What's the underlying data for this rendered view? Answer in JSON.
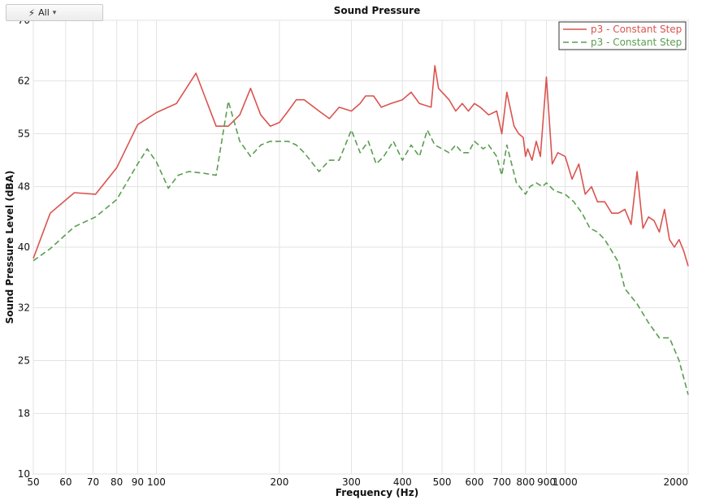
{
  "toolbar": {
    "filter_label": "All",
    "filter_icon": "lightning-bolt-icon",
    "dropdown_icon": "chevron-down-icon"
  },
  "chart_data": {
    "type": "line",
    "title": "Sound Pressure",
    "xlabel": "Frequency (Hz)",
    "ylabel": "Sound Pressure Level (dBA)",
    "x_scale": "log",
    "xlim": [
      50,
      2000
    ],
    "ylim": [
      10,
      70
    ],
    "x_ticks": [
      50,
      60,
      70,
      80,
      90,
      100,
      200,
      300,
      400,
      500,
      600,
      700,
      800,
      900,
      1000,
      2000
    ],
    "x_tick_labels": [
      "50",
      "60",
      "70",
      "80",
      "90",
      "100",
      "200",
      "300",
      "400",
      "500",
      "600",
      "700",
      "800",
      "900",
      "1000",
      "2000"
    ],
    "y_ticks": [
      10,
      18,
      25,
      32,
      40,
      48,
      55,
      62,
      70
    ],
    "y_tick_labels": [
      "10",
      "18",
      "25",
      "32",
      "40",
      "48",
      "55",
      "62",
      "70"
    ],
    "grid": true,
    "legend_position": "top-right",
    "series": [
      {
        "name": "p3  - Constant Step",
        "color": "#d9544f",
        "dash": "solid",
        "x": [
          50,
          55,
          63,
          71,
          80,
          90,
          100,
          112,
          125,
          140,
          150,
          160,
          170,
          180,
          190,
          200,
          210,
          220,
          230,
          250,
          265,
          280,
          300,
          315,
          325,
          340,
          355,
          375,
          400,
          420,
          440,
          470,
          480,
          490,
          500,
          520,
          540,
          560,
          580,
          600,
          620,
          650,
          680,
          700,
          720,
          750,
          770,
          790,
          800,
          810,
          830,
          850,
          870,
          900,
          930,
          960,
          1000,
          1040,
          1080,
          1120,
          1160,
          1200,
          1250,
          1300,
          1350,
          1400,
          1450,
          1500,
          1550,
          1600,
          1650,
          1700,
          1750,
          1800,
          1850,
          1900,
          1950,
          2000
        ],
        "y": [
          38.5,
          44.5,
          47.2,
          47.0,
          50.5,
          56.2,
          57.8,
          59.0,
          63.0,
          56.0,
          56.0,
          57.5,
          61.0,
          57.5,
          56.0,
          56.5,
          58.0,
          59.5,
          59.5,
          58.0,
          57.0,
          58.5,
          58.0,
          59.0,
          60.0,
          60.0,
          58.5,
          59.0,
          59.5,
          60.5,
          59.0,
          58.5,
          64.0,
          61.0,
          60.5,
          59.5,
          58.0,
          59.0,
          58.0,
          59.0,
          58.5,
          57.5,
          58.0,
          55.0,
          60.5,
          56.0,
          55.0,
          54.5,
          52.0,
          53.0,
          51.5,
          54.0,
          52.0,
          62.5,
          51.0,
          52.5,
          52.0,
          49.0,
          51.0,
          47.0,
          48.0,
          46.0,
          46.0,
          44.5,
          44.5,
          45.0,
          43.0,
          50.0,
          42.5,
          44.0,
          43.5,
          42.0,
          45.0,
          41.0,
          40.0,
          41.0,
          39.5,
          37.5
        ]
      },
      {
        "name": "p3  - Constant Step",
        "color": "#5a9e50",
        "dash": "dashed",
        "x": [
          50,
          55,
          63,
          71,
          80,
          90,
          95,
          100,
          107,
          113,
          120,
          130,
          140,
          150,
          160,
          170,
          180,
          190,
          200,
          210,
          220,
          230,
          250,
          265,
          280,
          300,
          315,
          330,
          345,
          360,
          380,
          400,
          420,
          440,
          460,
          480,
          500,
          520,
          540,
          560,
          580,
          600,
          630,
          650,
          680,
          700,
          720,
          760,
          800,
          820,
          850,
          880,
          900,
          940,
          1000,
          1050,
          1100,
          1150,
          1200,
          1250,
          1300,
          1350,
          1400,
          1500,
          1600,
          1700,
          1800,
          1900,
          2000
        ],
        "y": [
          38.2,
          39.8,
          42.7,
          44.0,
          46.3,
          51.0,
          53.0,
          51.3,
          47.8,
          49.5,
          50.0,
          49.8,
          49.5,
          59.3,
          54.0,
          52.0,
          53.5,
          54.0,
          54.0,
          54.0,
          53.5,
          52.5,
          50.0,
          51.5,
          51.5,
          55.5,
          52.5,
          54.0,
          51.0,
          52.0,
          54.0,
          51.5,
          53.5,
          52.0,
          55.5,
          53.5,
          53.0,
          52.5,
          53.5,
          52.5,
          52.5,
          54.0,
          53.0,
          53.5,
          52.0,
          49.5,
          53.5,
          48.5,
          47.0,
          48.0,
          48.5,
          48.0,
          48.5,
          47.5,
          47.0,
          46.0,
          44.5,
          42.5,
          42.0,
          41.0,
          39.5,
          38.0,
          34.5,
          32.5,
          30.0,
          28.0,
          28.0,
          25.0,
          20.5
        ]
      }
    ]
  }
}
